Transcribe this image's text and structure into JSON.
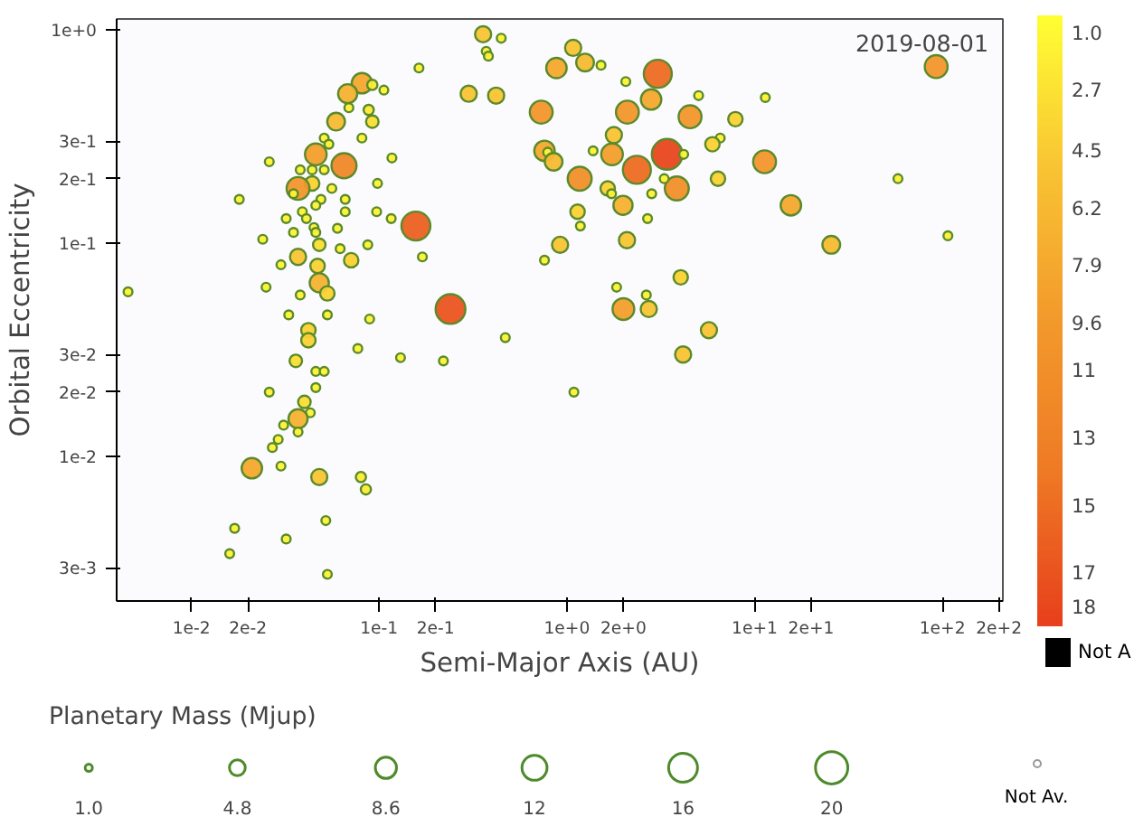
{
  "chart_data": {
    "type": "bubble",
    "xlabel": "Semi-Major Axis (AU)",
    "ylabel": "Orbital Eccentricity",
    "legend_title": "Planetary Mass (Mjup)",
    "annotations": [
      "2019-08-01"
    ],
    "x": [
      0.358,
      0.447,
      0.372,
      0.382,
      0.163,
      0.88,
      0.081,
      0.068,
      0.092,
      0.106,
      0.3,
      0.42,
      0.73,
      0.069,
      0.088,
      0.092,
      0.059,
      0.051,
      0.054,
      0.081,
      0.76,
      0.79,
      0.85,
      0.046,
      0.065,
      0.026,
      0.038,
      0.044,
      0.051,
      0.117,
      0.044,
      0.037,
      0.035,
      0.056,
      0.098,
      0.018,
      0.049,
      0.066,
      0.066,
      0.032,
      0.039,
      0.041,
      0.046,
      0.097,
      0.116,
      0.157,
      0.045,
      0.046,
      0.06,
      0.035,
      0.024,
      0.048,
      0.062,
      0.087,
      0.17,
      0.76,
      0.92,
      0.037,
      0.03,
      0.047,
      0.071,
      0.048,
      0.053,
      0.038,
      0.025,
      0.0046,
      0.24,
      0.033,
      0.053,
      0.089,
      0.042,
      0.042,
      0.077,
      0.47,
      0.13,
      0.22,
      0.036,
      0.046,
      0.051,
      0.046,
      0.026,
      0.04,
      0.043,
      0.037,
      0.031,
      0.037,
      0.029,
      0.027,
      0.021,
      0.03,
      0.048,
      0.08,
      0.085,
      0.017,
      0.016,
      0.032,
      0.052,
      0.053,
      1.08,
      1.25,
      1.52,
      2.06,
      3.05,
      2.81,
      2.1,
      4.53,
      5.03,
      7.9,
      11.4,
      92.7,
      1.78,
      1.38,
      1.74,
      3.42,
      4.19,
      6.56,
      5.96,
      1.17,
      2.36,
      3.85,
      3.3,
      11.3,
      6.38,
      1.65,
      1.73,
      1.99,
      2.83,
      1.14,
      1.18,
      2.69,
      15.6,
      58,
      25.6,
      107,
      2.09,
      4.04,
      1.84,
      2.65,
      2.0,
      2.73,
      1.09,
      4.16,
      5.71
    ],
    "values": [
      0.95,
      0.91,
      0.79,
      0.75,
      0.66,
      0.66,
      0.56,
      0.5,
      0.55,
      0.52,
      0.5,
      0.49,
      0.41,
      0.43,
      0.42,
      0.37,
      0.37,
      0.31,
      0.29,
      0.31,
      0.27,
      0.266,
      0.24,
      0.26,
      0.23,
      0.24,
      0.22,
      0.22,
      0.22,
      0.25,
      0.19,
      0.18,
      0.17,
      0.18,
      0.19,
      0.16,
      0.16,
      0.16,
      0.14,
      0.13,
      0.14,
      0.13,
      0.15,
      0.14,
      0.13,
      0.12,
      0.118,
      0.112,
      0.117,
      0.112,
      0.104,
      0.098,
      0.094,
      0.098,
      0.086,
      0.083,
      0.098,
      0.086,
      0.079,
      0.078,
      0.083,
      0.065,
      0.058,
      0.057,
      0.062,
      0.059,
      0.049,
      0.046,
      0.046,
      0.044,
      0.039,
      0.035,
      0.032,
      0.036,
      0.029,
      0.028,
      0.028,
      0.025,
      0.025,
      0.021,
      0.02,
      0.018,
      0.016,
      0.015,
      0.014,
      0.013,
      0.012,
      0.011,
      0.0088,
      0.009,
      0.008,
      0.008,
      0.007,
      0.0046,
      0.0035,
      0.0041,
      0.005,
      0.0028,
      0.82,
      0.7,
      0.68,
      0.57,
      0.62,
      0.47,
      0.41,
      0.39,
      0.49,
      0.38,
      0.48,
      0.67,
      0.32,
      0.27,
      0.26,
      0.26,
      0.26,
      0.31,
      0.29,
      0.2,
      0.22,
      0.18,
      0.2,
      0.24,
      0.2,
      0.18,
      0.17,
      0.15,
      0.17,
      0.14,
      0.12,
      0.13,
      0.15,
      0.2,
      0.098,
      0.108,
      0.103,
      0.069,
      0.062,
      0.057,
      0.049,
      0.049,
      0.02,
      0.03,
      0.039
    ],
    "sizes": [
      5,
      1.5,
      1.5,
      1.5,
      1.5,
      8,
      8,
      7,
      2,
      1.5,
      5,
      5,
      10,
      1.5,
      2,
      3,
      6,
      1.5,
      1.5,
      1.5,
      8,
      1.5,
      6,
      9,
      12,
      1.5,
      1.5,
      1.5,
      1.5,
      1.5,
      4,
      10,
      1.5,
      1.5,
      1.5,
      1.5,
      1.5,
      1.5,
      1.5,
      1.5,
      1.5,
      1.5,
      1.5,
      1.5,
      1.5,
      16,
      1.5,
      1.5,
      1.5,
      1.5,
      1.5,
      3,
      1.5,
      1.5,
      1.5,
      1.5,
      5,
      5,
      1.5,
      4,
      4,
      7,
      4,
      1.5,
      1.5,
      1.5,
      17,
      1.5,
      1.5,
      1.5,
      4,
      4,
      1.5,
      1.5,
      1.5,
      1.5,
      3,
      1.5,
      1.5,
      1.5,
      1.5,
      3,
      1.5,
      7,
      1.5,
      1.5,
      1.5,
      1.5,
      8,
      1.5,
      5,
      2,
      2,
      1.5,
      1.5,
      1.5,
      1.5,
      1.5,
      5,
      6,
      1.5,
      1.5,
      15,
      8,
      10,
      10,
      1.5,
      4,
      1.5,
      10,
      5,
      1.5,
      9,
      18,
      1.5,
      1.5,
      4,
      11,
      15,
      11,
      1.5,
      10,
      4,
      4,
      1.5,
      7,
      1.5,
      4,
      1.5,
      1.5,
      8,
      1.5,
      6,
      1.5,
      5,
      4,
      1.5,
      1.5,
      9,
      5,
      1.5,
      5,
      5
    ],
    "cvalues": [
      5,
      1.5,
      1.5,
      1.5,
      1.5,
      8,
      8,
      7,
      2,
      1.5,
      5,
      5,
      10,
      1.5,
      2,
      3,
      6,
      1.5,
      1.5,
      1.5,
      8,
      1.5,
      6,
      9,
      12,
      1.5,
      1.5,
      1.5,
      1.5,
      1.5,
      4,
      10,
      1.5,
      1.5,
      1.5,
      1.5,
      1.5,
      1.5,
      1.5,
      1.5,
      1.5,
      1.5,
      1.5,
      1.5,
      1.5,
      16,
      1.5,
      1.5,
      1.5,
      1.5,
      1.5,
      3,
      1.5,
      1.5,
      1.5,
      1.5,
      5,
      5,
      1.5,
      4,
      4,
      7,
      4,
      1.5,
      1.5,
      1.5,
      17,
      1.5,
      1.5,
      1.5,
      4,
      4,
      1.5,
      1.5,
      1.5,
      1.5,
      3,
      1.5,
      1.5,
      1.5,
      1.5,
      3,
      1.5,
      7,
      1.5,
      1.5,
      1.5,
      1.5,
      8,
      1.5,
      5,
      2,
      2,
      1.5,
      1.5,
      1.5,
      1.5,
      1.5,
      5,
      6,
      1.5,
      1.5,
      15,
      8,
      10,
      10,
      1.5,
      4,
      1.5,
      10,
      5,
      1.5,
      9,
      18,
      1.5,
      1.5,
      4,
      11,
      15,
      11,
      1.5,
      10,
      4,
      4,
      1.5,
      7,
      1.5,
      4,
      1.5,
      1.5,
      8,
      1.5,
      6,
      1.5,
      5,
      4,
      1.5,
      1.5,
      9,
      5,
      1.5,
      5,
      5
    ],
    "size_legend": [
      {
        "value": 1,
        "label": "1.0"
      },
      4.8,
      8.6,
      {
        "value": 12,
        "label": "12"
      },
      {
        "value": 16,
        "label": "16"
      },
      {
        "value": 20,
        "label": "20"
      },
      {
        "value": null,
        "label": "Not Av."
      }
    ],
    "clim": [
      0.5,
      18.6
    ],
    "cticks": [
      {
        "value": 1,
        "label": "1.0"
      },
      2.7,
      4.5,
      6.2,
      7.9,
      9.6,
      11,
      13,
      15,
      17,
      18,
      {
        "value": null,
        "label": "Not A"
      }
    ],
    "log": "xy",
    "grid": false,
    "marker": "circle",
    "xlim": [
      0.004,
      210
    ],
    "ylim": [
      0.0021,
      1.12
    ],
    "xticks": [
      {
        "value": 0.01,
        "label": "1e-2"
      },
      {
        "value": 0.02,
        "label": "2e-2"
      },
      {
        "value": 0.1,
        "label": "1e-1"
      },
      {
        "value": 0.2,
        "label": "2e-1"
      },
      {
        "value": 1,
        "label": "1e+0"
      },
      {
        "value": 2,
        "label": "2e+0"
      },
      {
        "value": 10,
        "label": "1e+1"
      },
      {
        "value": 20,
        "label": "2e+1"
      },
      {
        "value": 100,
        "label": "1e+2"
      },
      {
        "value": 200,
        "label": "2e+2"
      }
    ],
    "yticks": [
      {
        "value": 0.003,
        "label": "3e-3"
      },
      {
        "value": 0.01,
        "label": "1e-2"
      },
      {
        "value": 0.02,
        "label": "2e-2"
      },
      {
        "value": 0.03,
        "label": "3e-2"
      },
      {
        "value": 0.1,
        "label": "1e-1"
      },
      {
        "value": 0.2,
        "label": "2e-1"
      },
      {
        "value": 0.3,
        "label": "3e-1"
      },
      {
        "value": 1,
        "label": "1e+0"
      }
    ]
  }
}
